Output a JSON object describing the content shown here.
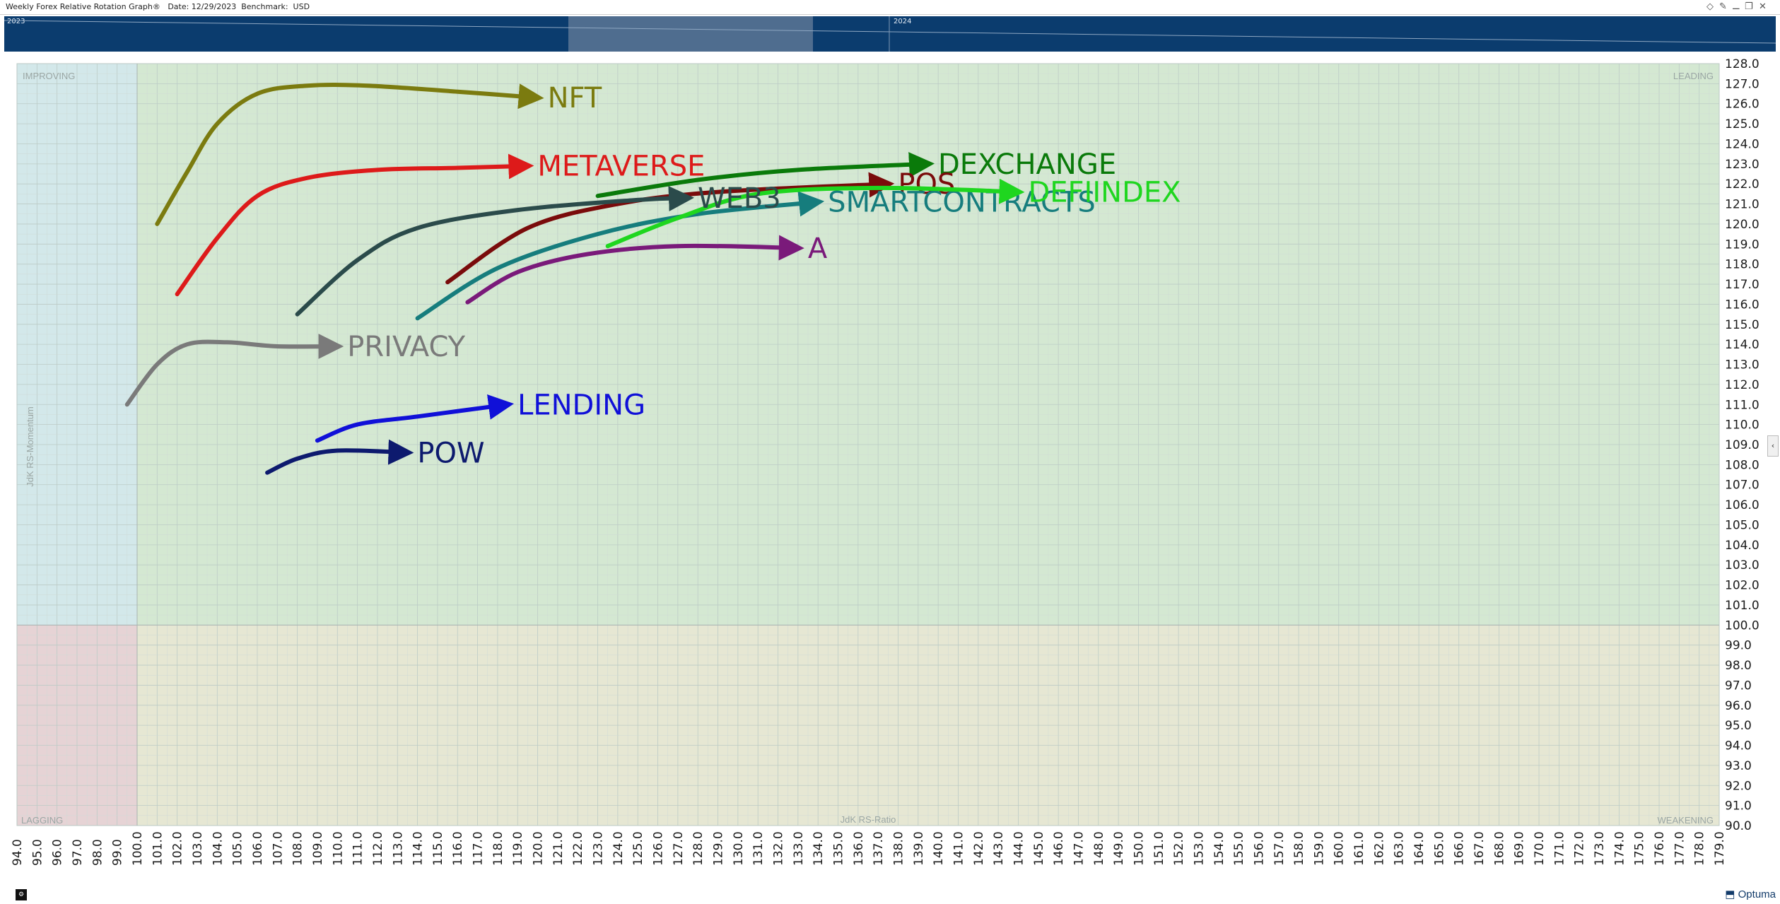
{
  "window": {
    "title": "Weekly Forex Relative Rotation Graph®   Date: 12/29/2023  Benchmark:  USD",
    "icons": [
      "diamond-icon",
      "pin-icon",
      "minimize-icon",
      "restore-icon",
      "close-icon"
    ]
  },
  "timeline": {
    "year_start": "2023",
    "year_end": "2024"
  },
  "quadrants": {
    "improving": "IMPROVING",
    "leading": "LEADING",
    "lagging": "LAGGING",
    "weakening": "WEAKENING"
  },
  "footer": {
    "brand": "Optuma"
  },
  "colors": {
    "improving": "#d3e8ea",
    "leading": "#d4e8d2",
    "lagging": "#e6d3d5",
    "weakening": "#e6e7d3",
    "timeline": "#0b3c6e"
  },
  "chart_data": {
    "type": "scatter",
    "xlabel": "JdK RS-Ratio",
    "ylabel": "JdK RS-Momentum",
    "xlim": [
      94,
      179
    ],
    "ylim": [
      90,
      128
    ],
    "x_ticks": [
      "94.0",
      "95.0",
      "96.0",
      "97.0",
      "98.0",
      "99.0",
      "100.0",
      "101.0",
      "102.0",
      "103.0",
      "104.0",
      "105.0",
      "106.0",
      "107.0",
      "108.0",
      "109.0",
      "110.0",
      "111.0",
      "112.0",
      "113.0",
      "114.0",
      "115.0",
      "116.0",
      "117.0",
      "118.0",
      "119.0",
      "120.0",
      "121.0",
      "122.0",
      "123.0",
      "124.0",
      "125.0",
      "126.0",
      "127.0",
      "128.0",
      "129.0",
      "130.0",
      "131.0",
      "132.0",
      "133.0",
      "134.0",
      "135.0",
      "136.0",
      "137.0",
      "138.0",
      "139.0",
      "140.0",
      "141.0",
      "142.0",
      "143.0",
      "144.0",
      "145.0",
      "146.0",
      "147.0",
      "148.0",
      "149.0",
      "150.0",
      "151.0",
      "152.0",
      "153.0",
      "154.0",
      "155.0",
      "156.0",
      "157.0",
      "158.0",
      "159.0",
      "160.0",
      "161.0",
      "162.0",
      "163.0",
      "164.0",
      "165.0",
      "166.0",
      "167.0",
      "168.0",
      "169.0",
      "170.0",
      "171.0",
      "172.0",
      "173.0",
      "174.0",
      "175.0",
      "176.0",
      "177.0",
      "178.0",
      "179.0"
    ],
    "y_ticks": [
      "128.0",
      "127.0",
      "126.0",
      "125.0",
      "124.0",
      "123.0",
      "122.0",
      "121.0",
      "120.0",
      "119.0",
      "118.0",
      "117.0",
      "116.0",
      "115.0",
      "114.0",
      "113.0",
      "112.0",
      "111.0",
      "110.0",
      "109.0",
      "108.0",
      "107.0",
      "106.0",
      "105.0",
      "104.0",
      "103.0",
      "102.0",
      "101.0",
      "100.0",
      "99.0",
      "98.0",
      "97.0",
      "96.0",
      "95.0",
      "94.0",
      "93.0",
      "92.0",
      "91.0",
      "90.0"
    ],
    "series": [
      {
        "name": "NFT",
        "color": "#7b7b0f",
        "points": [
          [
            101.0,
            120.0
          ],
          [
            102.5,
            122.6
          ],
          [
            104.0,
            125.0
          ],
          [
            106.0,
            126.5
          ],
          [
            108.5,
            126.9
          ],
          [
            111.5,
            126.9
          ],
          [
            116.0,
            126.6
          ],
          [
            120.0,
            126.3
          ]
        ]
      },
      {
        "name": "METAVERSE",
        "color": "#dd1a1a",
        "points": [
          [
            102.0,
            116.5
          ],
          [
            104.0,
            119.3
          ],
          [
            106.0,
            121.4
          ],
          [
            108.5,
            122.3
          ],
          [
            112.0,
            122.7
          ],
          [
            116.0,
            122.8
          ],
          [
            119.5,
            122.9
          ]
        ]
      },
      {
        "name": "DEXCHANGE",
        "color": "#0a7a0a",
        "points": [
          [
            123.0,
            121.4
          ],
          [
            128.0,
            122.2
          ],
          [
            133.0,
            122.7
          ],
          [
            139.5,
            123.0
          ]
        ]
      },
      {
        "name": "POS",
        "color": "#7a0b0b",
        "points": [
          [
            115.5,
            117.1
          ],
          [
            119.5,
            119.8
          ],
          [
            124.0,
            121.0
          ],
          [
            129.0,
            121.6
          ],
          [
            137.5,
            122.0
          ]
        ]
      },
      {
        "name": "SMARTCONTRACTS",
        "color": "#167d7d",
        "points": [
          [
            114.0,
            115.3
          ],
          [
            118.0,
            117.8
          ],
          [
            123.0,
            119.5
          ],
          [
            128.0,
            120.5
          ],
          [
            134.0,
            121.1
          ]
        ]
      },
      {
        "name": "DEFIINDEX",
        "color": "#1fd61f",
        "points": [
          [
            123.5,
            118.9
          ],
          [
            127.0,
            120.3
          ],
          [
            131.0,
            121.5
          ],
          [
            137.0,
            121.8
          ],
          [
            144.0,
            121.6
          ]
        ]
      },
      {
        "name": "WEB3",
        "color": "#2b4b4b",
        "points": [
          [
            108.0,
            115.5
          ],
          [
            111.0,
            118.2
          ],
          [
            114.0,
            119.8
          ],
          [
            119.0,
            120.7
          ],
          [
            125.0,
            121.2
          ],
          [
            127.5,
            121.3
          ]
        ]
      },
      {
        "name": "A",
        "color": "#7a1a7a",
        "points": [
          [
            116.5,
            116.1
          ],
          [
            119.0,
            117.6
          ],
          [
            122.5,
            118.5
          ],
          [
            127.0,
            118.9
          ],
          [
            133.0,
            118.8
          ]
        ]
      },
      {
        "name": "PRIVACY",
        "color": "#7a7a7a",
        "points": [
          [
            99.5,
            111.0
          ],
          [
            101.0,
            113.0
          ],
          [
            102.5,
            114.0
          ],
          [
            104.5,
            114.1
          ],
          [
            107.0,
            113.9
          ],
          [
            110.0,
            113.9
          ]
        ]
      },
      {
        "name": "LENDING",
        "color": "#1010d8",
        "points": [
          [
            109.0,
            109.2
          ],
          [
            111.0,
            110.0
          ],
          [
            114.0,
            110.4
          ],
          [
            118.5,
            111.0
          ]
        ]
      },
      {
        "name": "POW",
        "color": "#0d1a6e",
        "points": [
          [
            106.5,
            107.6
          ],
          [
            108.0,
            108.3
          ],
          [
            110.0,
            108.7
          ],
          [
            113.5,
            108.6
          ]
        ]
      }
    ]
  }
}
